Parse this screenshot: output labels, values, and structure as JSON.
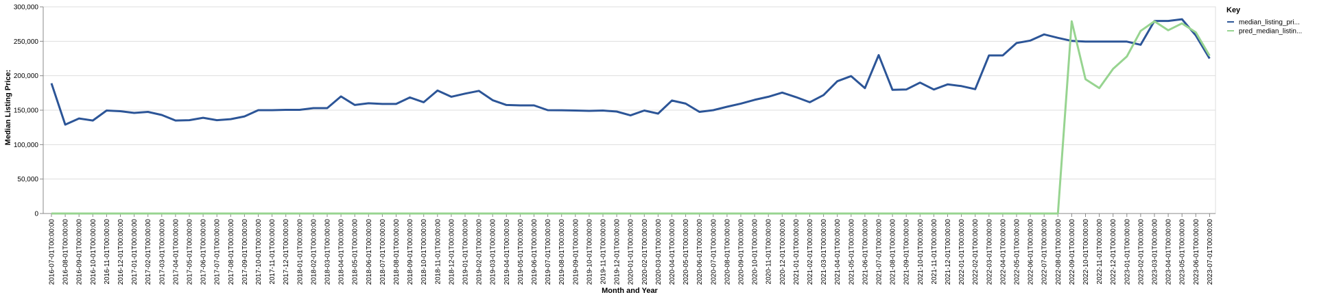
{
  "chart_data": {
    "type": "line",
    "xlabel": "Month and Year",
    "ylabel": "Median Listing Price:",
    "ylim": [
      0,
      300000
    ],
    "yticks": [
      "0",
      "50,000",
      "100,000",
      "150,000",
      "200,000",
      "250,000",
      "300,000"
    ],
    "grid": true,
    "legend": {
      "title": "Key",
      "placement": "right"
    },
    "x": [
      "2016-07-01T00:00:00",
      "2016-08-01T00:00:00",
      "2016-09-01T00:00:00",
      "2016-10-01T00:00:00",
      "2016-11-01T00:00:00",
      "2016-12-01T00:00:00",
      "2017-01-01T00:00:00",
      "2017-02-01T00:00:00",
      "2017-03-01T00:00:00",
      "2017-04-01T00:00:00",
      "2017-05-01T00:00:00",
      "2017-06-01T00:00:00",
      "2017-07-01T00:00:00",
      "2017-08-01T00:00:00",
      "2017-09-01T00:00:00",
      "2017-10-01T00:00:00",
      "2017-11-01T00:00:00",
      "2017-12-01T00:00:00",
      "2018-01-01T00:00:00",
      "2018-02-01T00:00:00",
      "2018-03-01T00:00:00",
      "2018-04-01T00:00:00",
      "2018-05-01T00:00:00",
      "2018-06-01T00:00:00",
      "2018-07-01T00:00:00",
      "2018-08-01T00:00:00",
      "2018-09-01T00:00:00",
      "2018-10-01T00:00:00",
      "2018-11-01T00:00:00",
      "2018-12-01T00:00:00",
      "2019-01-01T00:00:00",
      "2019-02-01T00:00:00",
      "2019-03-01T00:00:00",
      "2019-04-01T00:00:00",
      "2019-05-01T00:00:00",
      "2019-06-01T00:00:00",
      "2019-07-01T00:00:00",
      "2019-08-01T00:00:00",
      "2019-09-01T00:00:00",
      "2019-10-01T00:00:00",
      "2019-11-01T00:00:00",
      "2019-12-01T00:00:00",
      "2020-01-01T00:00:00",
      "2020-02-01T00:00:00",
      "2020-03-01T00:00:00",
      "2020-04-01T00:00:00",
      "2020-05-01T00:00:00",
      "2020-06-01T00:00:00",
      "2020-07-01T00:00:00",
      "2020-08-01T00:00:00",
      "2020-09-01T00:00:00",
      "2020-10-01T00:00:00",
      "2020-11-01T00:00:00",
      "2020-12-01T00:00:00",
      "2021-01-01T00:00:00",
      "2021-02-01T00:00:00",
      "2021-03-01T00:00:00",
      "2021-04-01T00:00:00",
      "2021-05-01T00:00:00",
      "2021-06-01T00:00:00",
      "2021-07-01T00:00:00",
      "2021-08-01T00:00:00",
      "2021-09-01T00:00:00",
      "2021-10-01T00:00:00",
      "2021-11-01T00:00:00",
      "2021-12-01T00:00:00",
      "2022-01-01T00:00:00",
      "2022-02-01T00:00:00",
      "2022-03-01T00:00:00",
      "2022-04-01T00:00:00",
      "2022-05-01T00:00:00",
      "2022-06-01T00:00:00",
      "2022-07-01T00:00:00",
      "2022-08-01T00:00:00",
      "2022-09-01T00:00:00",
      "2022-10-01T00:00:00",
      "2022-11-01T00:00:00",
      "2022-12-01T00:00:00",
      "2023-01-01T00:00:00",
      "2023-02-01T00:00:00",
      "2023-03-01T00:00:00",
      "2023-04-01T00:00:00",
      "2023-05-01T00:00:00",
      "2023-06-01T00:00:00",
      "2023-07-01T00:00:00"
    ],
    "series": [
      {
        "name": "median_listing_pri...",
        "color": "#2c5597",
        "values": [
          189000,
          129000,
          138000,
          135000,
          149500,
          148500,
          146000,
          147500,
          143000,
          135000,
          135500,
          139000,
          135500,
          137000,
          141000,
          150000,
          150000,
          150500,
          150500,
          153000,
          153000,
          170000,
          157500,
          160000,
          159000,
          159000,
          168500,
          161500,
          178500,
          169500,
          174000,
          178000,
          164500,
          157500,
          157000,
          157000,
          150000,
          149900,
          149500,
          149000,
          149500,
          148000,
          142500,
          149500,
          145000,
          164000,
          159500,
          147500,
          150000,
          155000,
          159500,
          165000,
          169500,
          175500,
          169000,
          161500,
          172000,
          192000,
          199500,
          182000,
          230000,
          179500,
          180000,
          190000,
          180000,
          187500,
          185000,
          180500,
          229500,
          229500,
          247500,
          251000,
          260000,
          255000,
          250500,
          249500,
          249500,
          249500,
          249500,
          245000,
          279500,
          279500,
          282000,
          258500,
          225000
        ]
      },
      {
        "name": "pred_median_listin...",
        "color": "#97d490",
        "values": [
          0,
          0,
          0,
          0,
          0,
          0,
          0,
          0,
          0,
          0,
          0,
          0,
          0,
          0,
          0,
          0,
          0,
          0,
          0,
          0,
          0,
          0,
          0,
          0,
          0,
          0,
          0,
          0,
          0,
          0,
          0,
          0,
          0,
          0,
          0,
          0,
          0,
          0,
          0,
          0,
          0,
          0,
          0,
          0,
          0,
          0,
          0,
          0,
          0,
          0,
          0,
          0,
          0,
          0,
          0,
          0,
          0,
          0,
          0,
          0,
          0,
          0,
          0,
          0,
          0,
          0,
          0,
          0,
          0,
          0,
          0,
          0,
          0,
          0,
          279000,
          195000,
          182000,
          210000,
          228000,
          265000,
          279000,
          266000,
          276000,
          263000,
          229000
        ]
      }
    ]
  }
}
